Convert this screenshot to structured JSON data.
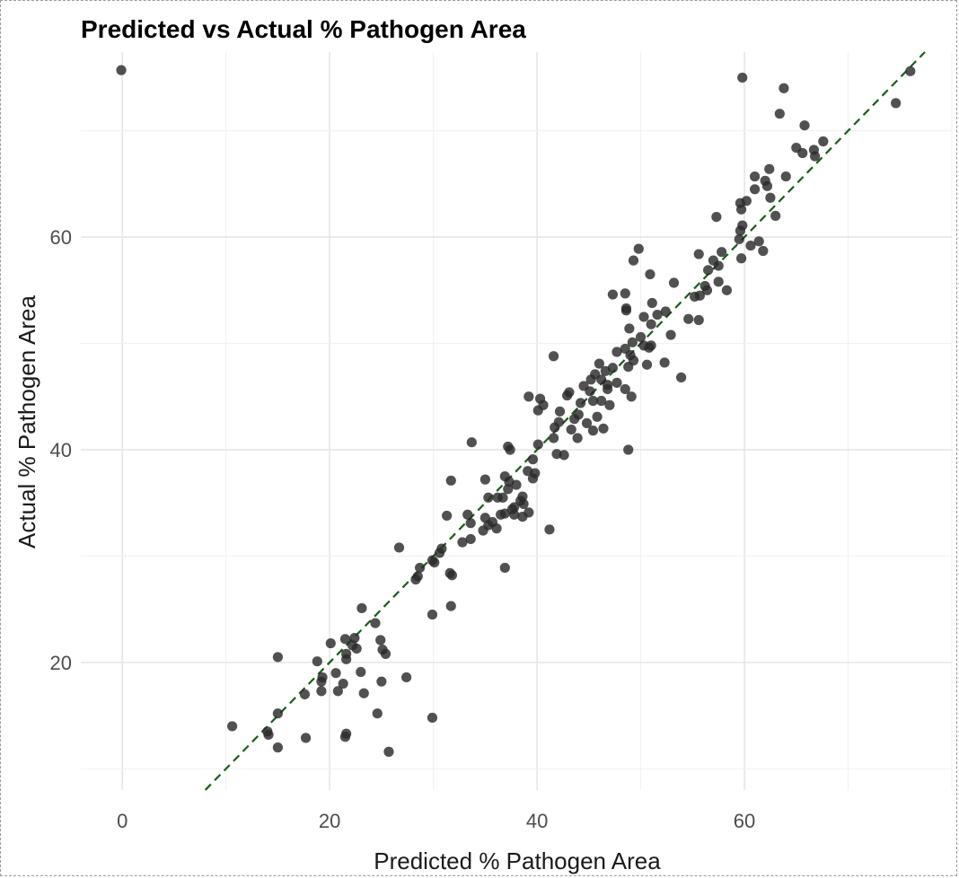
{
  "chart_data": {
    "type": "scatter",
    "title": "Predicted vs Actual % Pathogen Area",
    "xlabel": "Predicted % Pathogen Area",
    "ylabel": "Actual % Pathogen Area",
    "xlim": [
      -4,
      80
    ],
    "ylim": [
      8,
      77.4
    ],
    "x_ticks": [
      0,
      20,
      40,
      60
    ],
    "y_ticks": [
      20,
      40,
      60
    ],
    "x_tick_labels": [
      "0",
      "20",
      "40",
      "60"
    ],
    "y_tick_labels": [
      "20",
      "40",
      "60"
    ],
    "grid": true,
    "reference_line": {
      "style": "dashed",
      "color": "#1a5c1a",
      "slope": 1,
      "intercept": 0
    },
    "point_color": "#2b2b2b",
    "points": [
      [
        -0.1,
        75.7
      ],
      [
        59.8,
        75.0
      ],
      [
        63.8,
        74.0
      ],
      [
        76.0,
        75.6
      ],
      [
        74.6,
        72.6
      ],
      [
        63.4,
        71.6
      ],
      [
        65.8,
        70.5
      ],
      [
        67.6,
        69.0
      ],
      [
        65.0,
        68.4
      ],
      [
        66.7,
        68.2
      ],
      [
        65.6,
        67.9
      ],
      [
        66.8,
        67.6
      ],
      [
        62.4,
        66.4
      ],
      [
        61.0,
        65.7
      ],
      [
        62.0,
        65.3
      ],
      [
        64.0,
        65.7
      ],
      [
        62.2,
        64.8
      ],
      [
        61.0,
        64.5
      ],
      [
        62.5,
        63.7
      ],
      [
        59.6,
        63.2
      ],
      [
        60.2,
        63.4
      ],
      [
        59.7,
        62.6
      ],
      [
        57.3,
        61.9
      ],
      [
        63.0,
        62.0
      ],
      [
        59.8,
        61.1
      ],
      [
        59.6,
        60.6
      ],
      [
        60.6,
        59.2
      ],
      [
        61.4,
        59.6
      ],
      [
        59.5,
        59.8
      ],
      [
        61.8,
        58.7
      ],
      [
        49.8,
        58.9
      ],
      [
        55.6,
        58.4
      ],
      [
        57.8,
        58.6
      ],
      [
        57.0,
        57.8
      ],
      [
        49.3,
        57.8
      ],
      [
        57.5,
        57.3
      ],
      [
        59.7,
        58.0
      ],
      [
        56.5,
        56.9
      ],
      [
        50.9,
        56.5
      ],
      [
        53.2,
        55.7
      ],
      [
        57.5,
        55.8
      ],
      [
        56.2,
        55.4
      ],
      [
        56.4,
        55.0
      ],
      [
        58.3,
        55.0
      ],
      [
        47.3,
        54.6
      ],
      [
        48.5,
        54.7
      ],
      [
        55.7,
        54.5
      ],
      [
        55.2,
        54.4
      ],
      [
        51.1,
        53.8
      ],
      [
        48.6,
        53.3
      ],
      [
        48.6,
        53.1
      ],
      [
        52.4,
        53.0
      ],
      [
        51.6,
        52.7
      ],
      [
        50.3,
        52.5
      ],
      [
        54.6,
        52.3
      ],
      [
        55.6,
        52.2
      ],
      [
        51.0,
        51.8
      ],
      [
        48.9,
        51.4
      ],
      [
        50.0,
        50.6
      ],
      [
        52.9,
        50.8
      ],
      [
        49.2,
        50.1
      ],
      [
        51.0,
        49.8
      ],
      [
        50.3,
        49.8
      ],
      [
        50.8,
        49.6
      ],
      [
        48.5,
        49.5
      ],
      [
        47.7,
        49.2
      ],
      [
        49.0,
        48.9
      ],
      [
        49.3,
        48.4
      ],
      [
        46.0,
        48.1
      ],
      [
        41.6,
        48.8
      ],
      [
        50.6,
        48.0
      ],
      [
        48.8,
        47.8
      ],
      [
        52.3,
        48.2
      ],
      [
        47.3,
        47.7
      ],
      [
        46.6,
        47.4
      ],
      [
        45.6,
        47.1
      ],
      [
        53.9,
        46.8
      ],
      [
        46.2,
        46.6
      ],
      [
        47.7,
        46.3
      ],
      [
        46.8,
        46.1
      ],
      [
        45.2,
        46.6
      ],
      [
        44.5,
        46.0
      ],
      [
        48.5,
        45.7
      ],
      [
        46.8,
        45.7
      ],
      [
        45.1,
        45.5
      ],
      [
        43.1,
        45.4
      ],
      [
        42.9,
        45.1
      ],
      [
        49.1,
        45.0
      ],
      [
        45.4,
        44.6
      ],
      [
        46.2,
        44.6
      ],
      [
        44.2,
        44.4
      ],
      [
        47.0,
        44.2
      ],
      [
        39.2,
        45.0
      ],
      [
        40.3,
        44.8
      ],
      [
        40.6,
        44.2
      ],
      [
        40.1,
        43.7
      ],
      [
        42.2,
        43.6
      ],
      [
        44.0,
        43.3
      ],
      [
        45.8,
        43.1
      ],
      [
        43.6,
        42.9
      ],
      [
        44.8,
        42.5
      ],
      [
        42.1,
        42.6
      ],
      [
        41.7,
        42.1
      ],
      [
        43.3,
        41.9
      ],
      [
        46.4,
        42.0
      ],
      [
        48.8,
        40.0
      ],
      [
        45.4,
        41.8
      ],
      [
        43.9,
        41.1
      ],
      [
        42.6,
        39.5
      ],
      [
        41.9,
        39.6
      ],
      [
        41.6,
        41.1
      ],
      [
        33.7,
        40.7
      ],
      [
        40.1,
        40.5
      ],
      [
        39.6,
        39.1
      ],
      [
        37.2,
        40.3
      ],
      [
        37.4,
        40.0
      ],
      [
        39.1,
        38.0
      ],
      [
        39.8,
        37.8
      ],
      [
        36.9,
        37.5
      ],
      [
        35.0,
        37.2
      ],
      [
        37.3,
        37.0
      ],
      [
        31.7,
        37.1
      ],
      [
        38.0,
        36.7
      ],
      [
        37.2,
        36.3
      ],
      [
        39.6,
        37.3
      ],
      [
        38.6,
        35.6
      ],
      [
        38.4,
        35.2
      ],
      [
        36.7,
        35.5
      ],
      [
        36.2,
        35.5
      ],
      [
        35.3,
        35.5
      ],
      [
        37.8,
        34.6
      ],
      [
        37.6,
        34.4
      ],
      [
        38.7,
        34.9
      ],
      [
        36.9,
        34.0
      ],
      [
        37.8,
        33.9
      ],
      [
        36.5,
        33.9
      ],
      [
        38.6,
        33.7
      ],
      [
        39.2,
        34.1
      ],
      [
        35.0,
        33.6
      ],
      [
        35.7,
        33.2
      ],
      [
        35.3,
        32.9
      ],
      [
        34.8,
        32.4
      ],
      [
        33.6,
        33.1
      ],
      [
        33.3,
        33.9
      ],
      [
        31.3,
        33.8
      ],
      [
        36.1,
        32.6
      ],
      [
        41.2,
        32.5
      ],
      [
        32.8,
        31.3
      ],
      [
        33.6,
        31.6
      ],
      [
        30.8,
        30.7
      ],
      [
        30.6,
        30.3
      ],
      [
        29.9,
        29.6
      ],
      [
        30.1,
        29.4
      ],
      [
        26.7,
        30.8
      ],
      [
        36.9,
        28.9
      ],
      [
        31.6,
        28.4
      ],
      [
        31.8,
        28.2
      ],
      [
        28.7,
        28.9
      ],
      [
        28.5,
        28.1
      ],
      [
        28.3,
        27.8
      ],
      [
        31.7,
        25.3
      ],
      [
        23.1,
        25.1
      ],
      [
        29.9,
        24.5
      ],
      [
        24.4,
        23.7
      ],
      [
        22.4,
        22.3
      ],
      [
        21.5,
        22.2
      ],
      [
        24.9,
        22.1
      ],
      [
        20.1,
        21.8
      ],
      [
        22.2,
        21.6
      ],
      [
        22.6,
        21.3
      ],
      [
        25.1,
        21.2
      ],
      [
        25.4,
        20.8
      ],
      [
        15.0,
        20.5
      ],
      [
        21.6,
        20.8
      ],
      [
        18.8,
        20.1
      ],
      [
        21.6,
        20.3
      ],
      [
        20.6,
        19.0
      ],
      [
        23.0,
        19.1
      ],
      [
        19.3,
        18.6
      ],
      [
        27.4,
        18.6
      ],
      [
        19.2,
        18.2
      ],
      [
        25.0,
        18.2
      ],
      [
        21.3,
        18.0
      ],
      [
        19.2,
        17.3
      ],
      [
        20.8,
        17.3
      ],
      [
        23.3,
        17.1
      ],
      [
        17.6,
        17.0
      ],
      [
        24.6,
        15.2
      ],
      [
        15.0,
        15.2
      ],
      [
        29.9,
        14.8
      ],
      [
        10.6,
        14.0
      ],
      [
        14.0,
        13.5
      ],
      [
        14.1,
        13.2
      ],
      [
        21.6,
        13.3
      ],
      [
        21.5,
        13.0
      ],
      [
        17.7,
        12.9
      ],
      [
        15.0,
        12.0
      ],
      [
        25.7,
        11.6
      ]
    ]
  }
}
